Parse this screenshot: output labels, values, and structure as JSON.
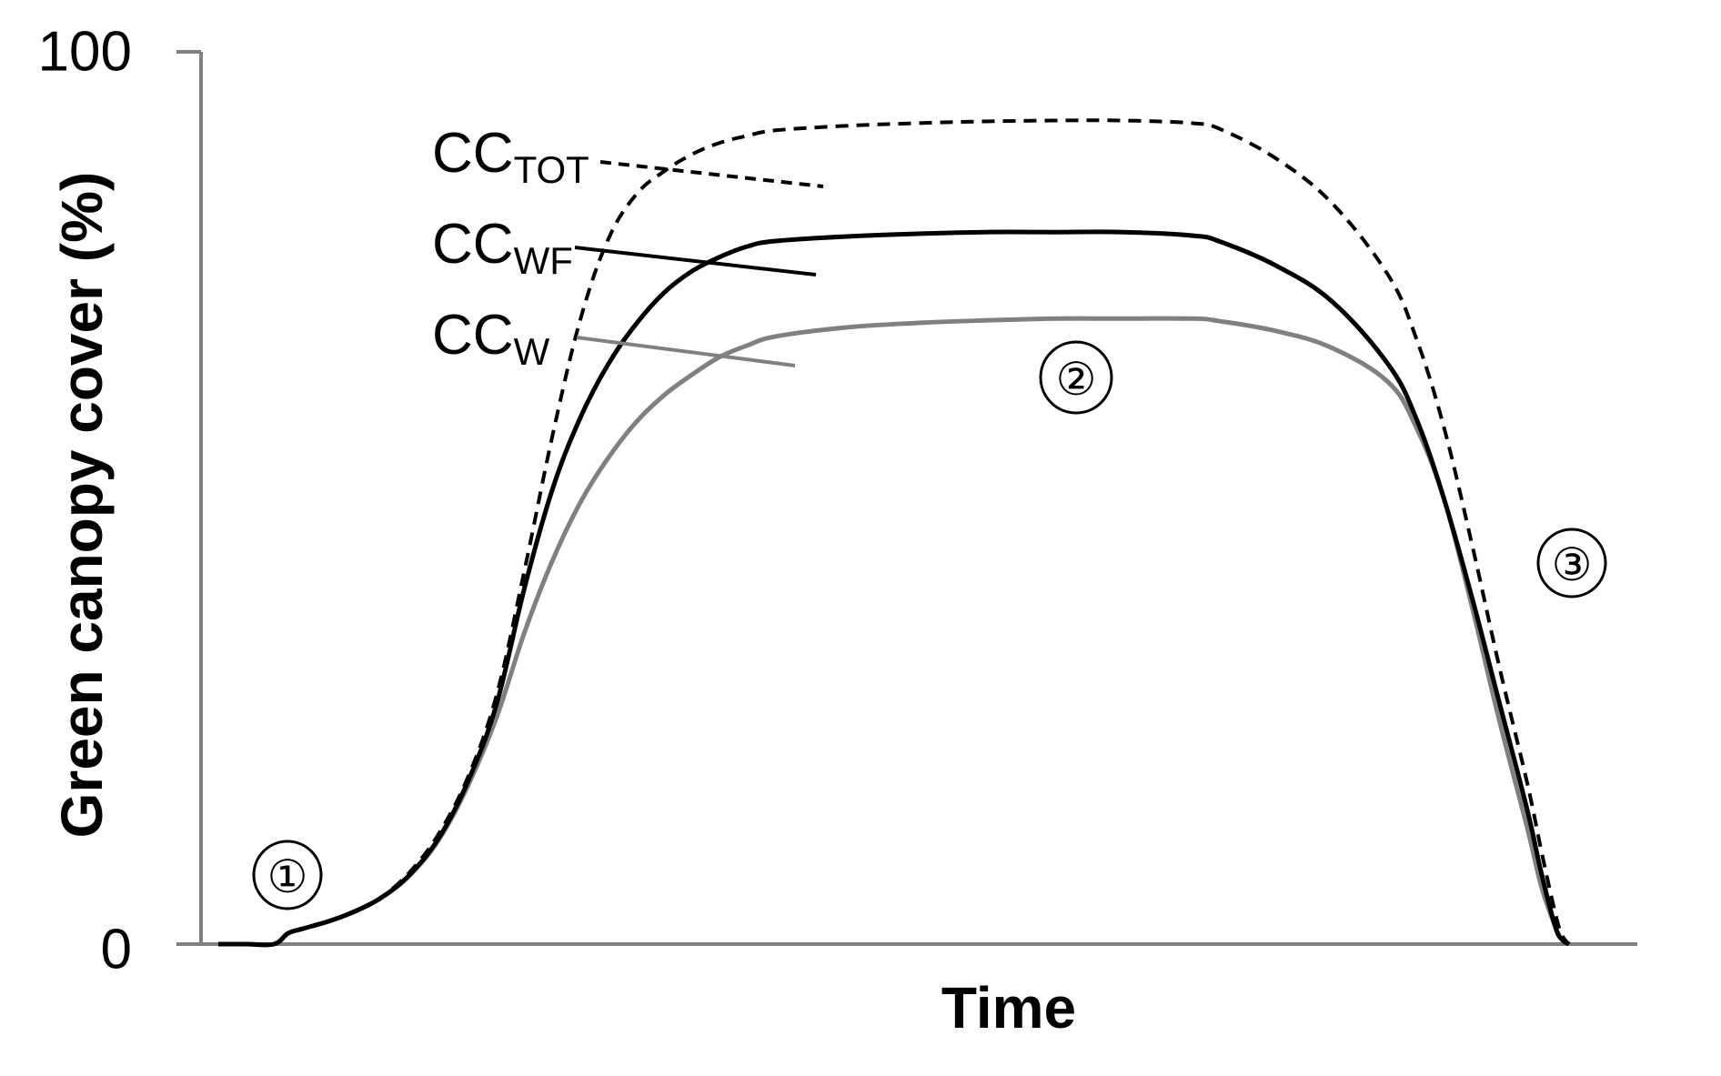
{
  "chart_data": {
    "type": "line",
    "title": "",
    "xlabel": "Time",
    "ylabel": "Green canopy cover (%)",
    "ylim": [
      0,
      100
    ],
    "yticks": [
      "0",
      "100"
    ],
    "grid": false,
    "x": [
      0,
      2,
      4,
      5,
      6,
      8,
      10,
      12,
      14,
      16,
      18,
      20,
      22,
      24,
      26,
      28,
      30,
      32,
      34,
      36,
      38,
      40,
      45,
      50,
      55,
      60,
      65,
      70,
      72,
      76,
      80,
      84,
      86,
      88,
      90,
      92,
      94,
      95,
      96,
      96.5,
      97
    ],
    "series": [
      {
        "name": "CC_TOT",
        "label_main": "CC",
        "label_sub": "TOT",
        "color": "#000000",
        "dash": "dashed",
        "values": [
          0,
          0,
          0,
          1.2,
          1.7,
          2.6,
          3.8,
          5.6,
          8.5,
          12.8,
          19.0,
          28.0,
          42.0,
          57.0,
          70.0,
          79.0,
          84.0,
          86.6,
          88.5,
          89.8,
          90.6,
          91.2,
          91.7,
          92.0,
          92.2,
          92.3,
          92.3,
          92.0,
          91.3,
          88.0,
          83.0,
          75.0,
          68.0,
          58.0,
          45.0,
          31.0,
          18.0,
          10.5,
          3.5,
          1.0,
          0
        ]
      },
      {
        "name": "CC_WF",
        "label_main": "CC",
        "label_sub": "WF",
        "color": "#000000",
        "dash": "solid",
        "values": [
          0,
          0,
          0,
          1.2,
          1.7,
          2.6,
          3.8,
          5.5,
          8.2,
          12.3,
          18.5,
          27.0,
          40.0,
          51.0,
          59.0,
          65.0,
          69.5,
          73.0,
          75.4,
          77.0,
          78.2,
          78.8,
          79.3,
          79.6,
          79.8,
          79.8,
          79.8,
          79.4,
          78.7,
          76.0,
          72.0,
          65.0,
          59.0,
          50.0,
          39.0,
          27.0,
          15.0,
          8.0,
          2.0,
          0.5,
          0
        ]
      },
      {
        "name": "CC_W",
        "label_main": "CC",
        "label_sub": "W",
        "color": "#808080",
        "dash": "solid",
        "values": [
          0,
          0,
          0,
          1.2,
          1.7,
          2.6,
          3.8,
          5.5,
          8.1,
          12.1,
          18.0,
          25.5,
          35.0,
          43.0,
          49.5,
          54.5,
          58.5,
          61.5,
          63.8,
          65.8,
          67.1,
          68.1,
          69.1,
          69.6,
          69.9,
          70.1,
          70.1,
          70.1,
          69.8,
          68.7,
          66.8,
          63.0,
          58.0,
          50.0,
          38.0,
          25.0,
          13.0,
          6.5,
          2.0,
          0.5,
          0
        ]
      }
    ],
    "annotations": [
      "①",
      "②",
      "③"
    ]
  }
}
